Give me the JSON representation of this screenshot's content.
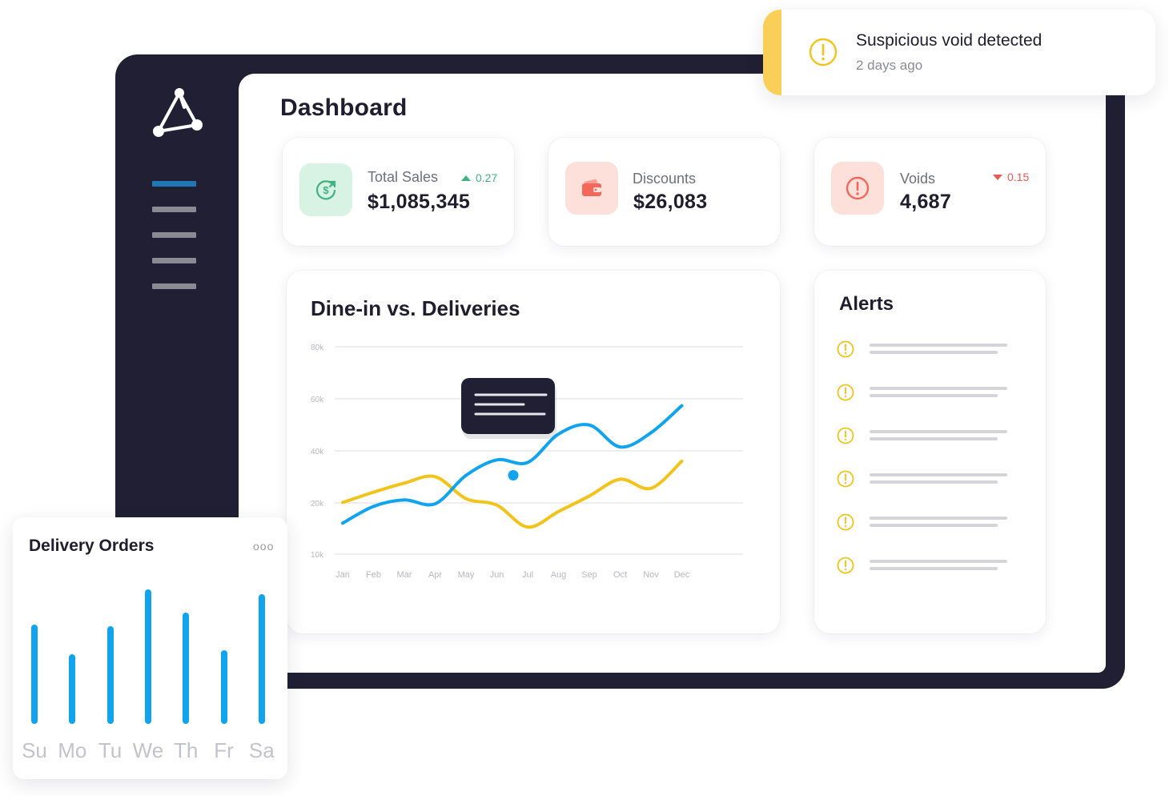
{
  "sidebar": {
    "logo": "brand-logo",
    "nav_items": [
      "nav-item-1",
      "nav-item-2",
      "nav-item-3",
      "nav-item-4",
      "nav-item-5"
    ],
    "active_index": 0
  },
  "header": {
    "title": "Dashboard"
  },
  "stats": [
    {
      "label": "Total Sales",
      "value": "$1,085,345",
      "delta": "0.27",
      "trend": "up",
      "icon": "dollar-sync-icon",
      "icon_bg": "#d8f2e4",
      "icon_color": "#3fb37f"
    },
    {
      "label": "Discounts",
      "value": "$26,083",
      "icon": "wallet-icon",
      "icon_bg": "#fde0da",
      "icon_color": "#f4685c"
    },
    {
      "label": "Voids",
      "value": "4,687",
      "delta": "0.15",
      "trend": "down",
      "icon": "alert-circle-icon",
      "icon_bg": "#fde0da",
      "icon_color": "#f4685c"
    }
  ],
  "chart_data": {
    "type": "line",
    "title": "Dine-in vs. Deliveries",
    "categories": [
      "Jan",
      "Feb",
      "Mar",
      "Apr",
      "May",
      "Jun",
      "Jul",
      "Aug",
      "Sep",
      "Oct",
      "Nov",
      "Dec"
    ],
    "y_ticks": [
      "80k",
      "60k",
      "40k",
      "20k",
      "10k"
    ],
    "series": [
      {
        "color": "#10a4ef",
        "values": [
          12000,
          18500,
          21000,
          19500,
          30500,
          36500,
          35500,
          46500,
          50000,
          41500,
          47000,
          57500
        ]
      },
      {
        "color": "#f2c31b",
        "values": [
          20000,
          24000,
          27500,
          30000,
          21500,
          19000,
          10500,
          16500,
          22500,
          29000,
          25500,
          36000
        ]
      }
    ],
    "highlight_index": 6,
    "grid": true,
    "legend": "none"
  },
  "alerts": {
    "title": "Alerts",
    "count": 6,
    "icon": "alert-icon"
  },
  "toast": {
    "title": "Suspicious void detected",
    "time": "2 days ago",
    "icon": "alert-icon",
    "accent": "#f9cf57"
  },
  "delivery_orders": {
    "title": "Delivery Orders",
    "more": "ooo",
    "days": [
      "Su",
      "Mo",
      "Tu",
      "We",
      "Th",
      "Fr",
      "Sa"
    ],
    "values": [
      0.73,
      0.51,
      0.72,
      0.99,
      0.82,
      0.54,
      0.95
    ],
    "bar_color": "#10a4ef"
  }
}
